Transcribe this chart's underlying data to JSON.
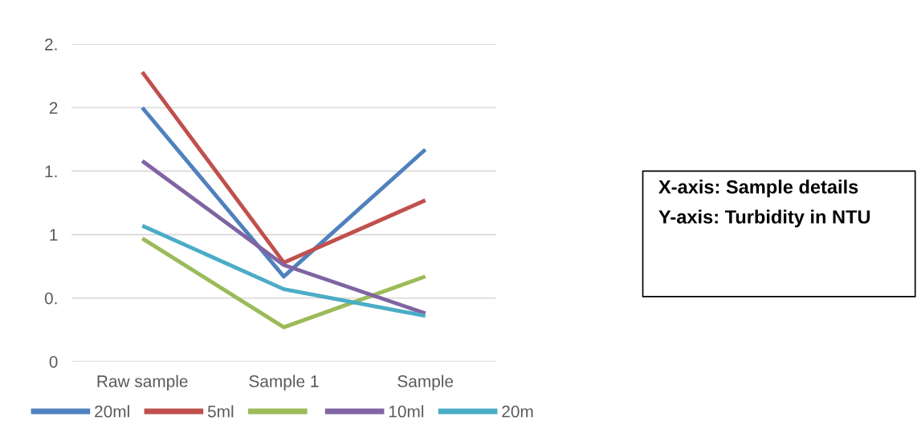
{
  "chart_data": {
    "type": "line",
    "categories": [
      "Raw sample",
      "Sample 1",
      "Sample"
    ],
    "series": [
      {
        "name": "20ml",
        "color": "#4f81bd",
        "values": [
          2.0,
          0.67,
          1.67
        ]
      },
      {
        "name": "5ml",
        "color": "#c0504d",
        "values": [
          2.28,
          0.78,
          1.27
        ]
      },
      {
        "color": "#9bbb59",
        "values": [
          0.97,
          0.27,
          0.67
        ]
      },
      {
        "name": "10ml",
        "color": "#8064a2",
        "values": [
          1.58,
          0.76,
          0.38
        ]
      },
      {
        "name": "20m",
        "color": "#4bacc6",
        "values": [
          1.07,
          0.57,
          0.36
        ]
      }
    ],
    "ylim": [
      0,
      2.5
    ],
    "yticks": [
      {
        "value": 0,
        "label": "0"
      },
      {
        "value": 0.5,
        "label": "0."
      },
      {
        "value": 1,
        "label": "1"
      },
      {
        "value": 1.5,
        "label": "1."
      },
      {
        "value": 2,
        "label": "2"
      },
      {
        "value": 2.5,
        "label": "2."
      }
    ],
    "grid": "y",
    "legend": "bottom",
    "marker": "none",
    "line_style": "solid",
    "annotations": [
      "X-axis: Sample details Y-axis: Turbidity in NTU"
    ]
  }
}
